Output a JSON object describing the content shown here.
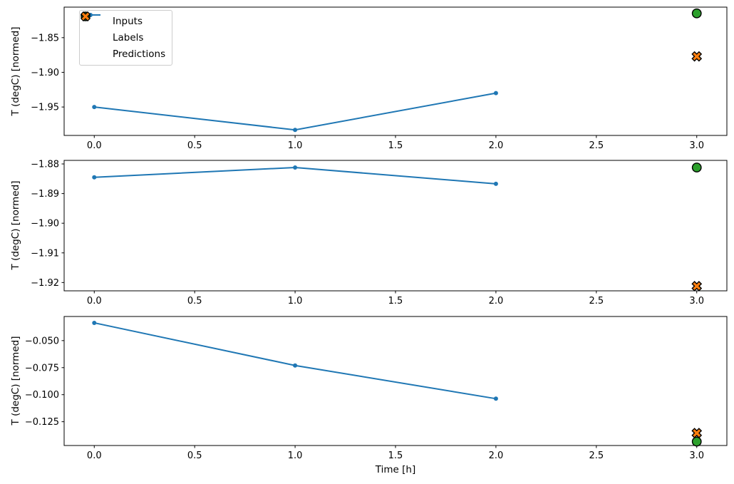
{
  "figure": {
    "background": "#ffffff",
    "xlabel": "Time [h]",
    "ylabel": "T (degC) [normed]"
  },
  "legend": {
    "position": "upper-left-subplot-1",
    "items": [
      {
        "label": "Inputs",
        "marker": "line-with-dot",
        "color": "#1f77b4"
      },
      {
        "label": "Labels",
        "marker": "circle",
        "color": "#2ca02c",
        "edge_color": "#000000"
      },
      {
        "label": "Predictions",
        "marker": "x-cross",
        "color": "#ff7f0e",
        "edge_color": "#000000"
      }
    ]
  },
  "chart_data": [
    {
      "type": "line",
      "ylabel": "T (degC) [normed]",
      "grid": false,
      "xlim": [
        -0.15,
        3.15
      ],
      "ylim": [
        -1.991,
        -1.806
      ],
      "xticks": {
        "values": [
          0,
          0.5,
          1,
          1.5,
          2,
          2.5,
          3
        ],
        "labels": [
          "0.0",
          "0.5",
          "1.0",
          "1.5",
          "2.0",
          "2.5",
          "3.0"
        ]
      },
      "yticks": {
        "values": [
          -1.85,
          -1.9,
          -1.95
        ],
        "labels": [
          "−1.85",
          "−1.90",
          "−1.95"
        ]
      },
      "series": [
        {
          "name": "Inputs",
          "type": "line",
          "color": "#1f77b4",
          "x": [
            0,
            1,
            2
          ],
          "y": [
            -1.95,
            -1.983,
            -1.93
          ]
        },
        {
          "name": "Labels",
          "type": "circle",
          "color": "#2ca02c",
          "edge": "#000000",
          "x": [
            3
          ],
          "y": [
            -1.815
          ]
        },
        {
          "name": "Predictions",
          "type": "x",
          "color": "#ff7f0e",
          "edge": "#000000",
          "x": [
            3
          ],
          "y": [
            -1.877
          ]
        }
      ]
    },
    {
      "type": "line",
      "ylabel": "T (degC) [normed]",
      "grid": false,
      "xlim": [
        -0.15,
        3.15
      ],
      "ylim": [
        -1.9228,
        -1.8788
      ],
      "xticks": {
        "values": [
          0,
          0.5,
          1,
          1.5,
          2,
          2.5,
          3
        ],
        "labels": [
          "0.0",
          "0.5",
          "1.0",
          "1.5",
          "2.0",
          "2.5",
          "3.0"
        ]
      },
      "yticks": {
        "values": [
          -1.88,
          -1.89,
          -1.9,
          -1.91,
          -1.92
        ],
        "labels": [
          "−1.88",
          "−1.89",
          "−1.90",
          "−1.91",
          "−1.92"
        ]
      },
      "series": [
        {
          "name": "Inputs",
          "type": "line",
          "color": "#1f77b4",
          "x": [
            0,
            1,
            2
          ],
          "y": [
            -1.8845,
            -1.8812,
            -1.8867
          ]
        },
        {
          "name": "Labels",
          "type": "circle",
          "color": "#2ca02c",
          "edge": "#000000",
          "x": [
            3
          ],
          "y": [
            -1.8812
          ]
        },
        {
          "name": "Predictions",
          "type": "x",
          "color": "#ff7f0e",
          "edge": "#000000",
          "x": [
            3
          ],
          "y": [
            -1.9212
          ]
        }
      ]
    },
    {
      "type": "line",
      "ylabel": "T (degC) [normed]",
      "xlabel": "Time [h]",
      "grid": false,
      "xlim": [
        -0.15,
        3.15
      ],
      "ylim": [
        -0.147,
        -0.0277
      ],
      "xticks": {
        "values": [
          0,
          0.5,
          1,
          1.5,
          2,
          2.5,
          3
        ],
        "labels": [
          "0.0",
          "0.5",
          "1.0",
          "1.5",
          "2.0",
          "2.5",
          "3.0"
        ]
      },
      "yticks": {
        "values": [
          -0.05,
          -0.075,
          -0.1,
          -0.125
        ],
        "labels": [
          "−0.050",
          "−0.075",
          "−0.100",
          "−0.125"
        ]
      },
      "series": [
        {
          "name": "Inputs",
          "type": "line",
          "color": "#1f77b4",
          "x": [
            0,
            1,
            2
          ],
          "y": [
            -0.0336,
            -0.073,
            -0.1037
          ]
        },
        {
          "name": "Labels",
          "type": "circle",
          "color": "#2ca02c",
          "edge": "#000000",
          "x": [
            3
          ],
          "y": [
            -0.1434
          ]
        },
        {
          "name": "Predictions",
          "type": "x",
          "color": "#ff7f0e",
          "edge": "#000000",
          "x": [
            3
          ],
          "y": [
            -0.1355
          ]
        }
      ]
    }
  ]
}
